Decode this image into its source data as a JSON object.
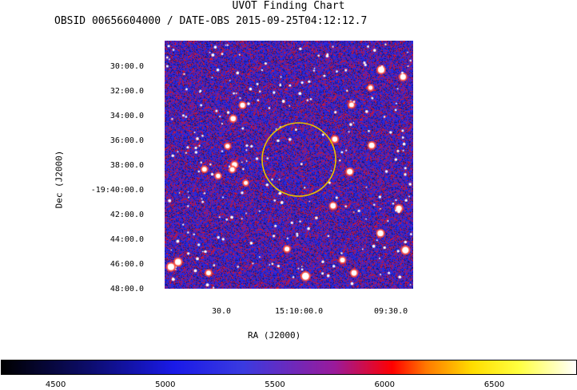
{
  "title": "UVOT Finding Chart",
  "subtitle": "OBSID 00656604000 / DATE-OBS 2015-09-25T04:12:12.7",
  "axes": {
    "ylabel": "Dec (J2000)",
    "xlabel": "RA (J2000)",
    "dec_ticks": [
      "30:00.0",
      "32:00.0",
      "34:00.0",
      "36:00.0",
      "38:00.0",
      "-19:40:00.0",
      "42:00.0",
      "44:00.0",
      "46:00.0",
      "48:00.0"
    ],
    "ra_ticks": [
      "30.0",
      "15:10:00.0",
      "09:30.0"
    ]
  },
  "colorbar": {
    "ticks": [
      "4500",
      "5000",
      "5500",
      "6000",
      "6500"
    ],
    "tick_values": [
      4500,
      5000,
      5500,
      6000,
      6500
    ],
    "range": [
      4250,
      6870
    ]
  },
  "source_marker": {
    "color": "#e8c200",
    "shape": "circle"
  },
  "colors": {
    "sky_blue": "#2a2ad2",
    "sky_red": "#cc1010",
    "star": "#ffffff"
  }
}
